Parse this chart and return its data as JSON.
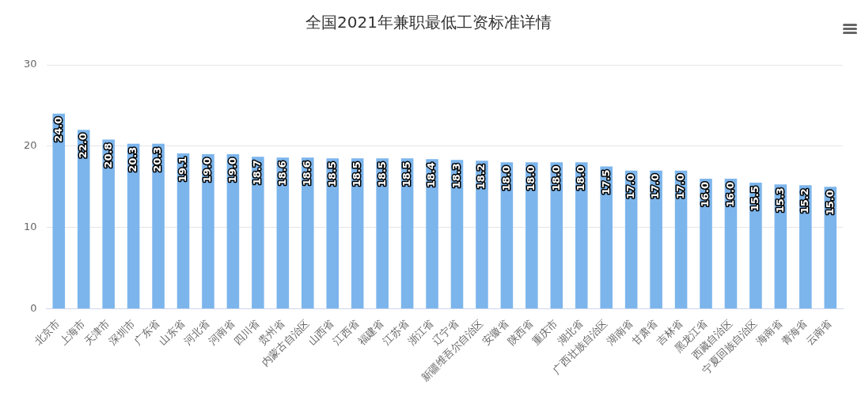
{
  "chart_data": {
    "type": "bar",
    "title": "全国2021年兼职最低工资标准详情",
    "categories": [
      "北京市",
      "上海市",
      "天津市",
      "深圳市",
      "广东省",
      "山东省",
      "河北省",
      "河南省",
      "四川省",
      "贵州省",
      "内蒙古自治区",
      "山西省",
      "江西省",
      "福建省",
      "江苏省",
      "浙江省",
      "辽宁省",
      "新疆维吾尔自治区",
      "安徽省",
      "陕西省",
      "重庆市",
      "湖北省",
      "广西壮族自治区",
      "湖南省",
      "甘肃省",
      "吉林省",
      "黑龙江省",
      "西藏自治区",
      "宁夏回族自治区",
      "海南省",
      "青海省",
      "云南省"
    ],
    "values": [
      24.0,
      22.0,
      20.8,
      20.3,
      20.3,
      19.1,
      19.0,
      19.0,
      18.7,
      18.6,
      18.6,
      18.5,
      18.5,
      18.5,
      18.5,
      18.4,
      18.3,
      18.2,
      18.0,
      18.0,
      18.0,
      18.0,
      17.5,
      17.0,
      17.0,
      17.0,
      16.0,
      16.0,
      15.5,
      15.3,
      15.2,
      15.0
    ],
    "value_labels": [
      "24.0",
      "22.0",
      "20.8",
      "20.3",
      "20.3",
      "19.1",
      "19.0",
      "19.0",
      "18.7",
      "18.6",
      "18.6",
      "18.5",
      "18.5",
      "18.5",
      "18.5",
      "18.4",
      "18.3",
      "18.2",
      "18.0",
      "18.0",
      "18.0",
      "18.0",
      "17.5",
      "17.0",
      "17.0",
      "17.0",
      "16.0",
      "16.0",
      "15.5",
      "15.3",
      "15.2",
      "15.0"
    ],
    "color": "#7cb5ec",
    "ylim": [
      0,
      30
    ],
    "yticks": [
      0,
      10,
      20,
      30
    ],
    "grid": "y",
    "legend": false
  }
}
